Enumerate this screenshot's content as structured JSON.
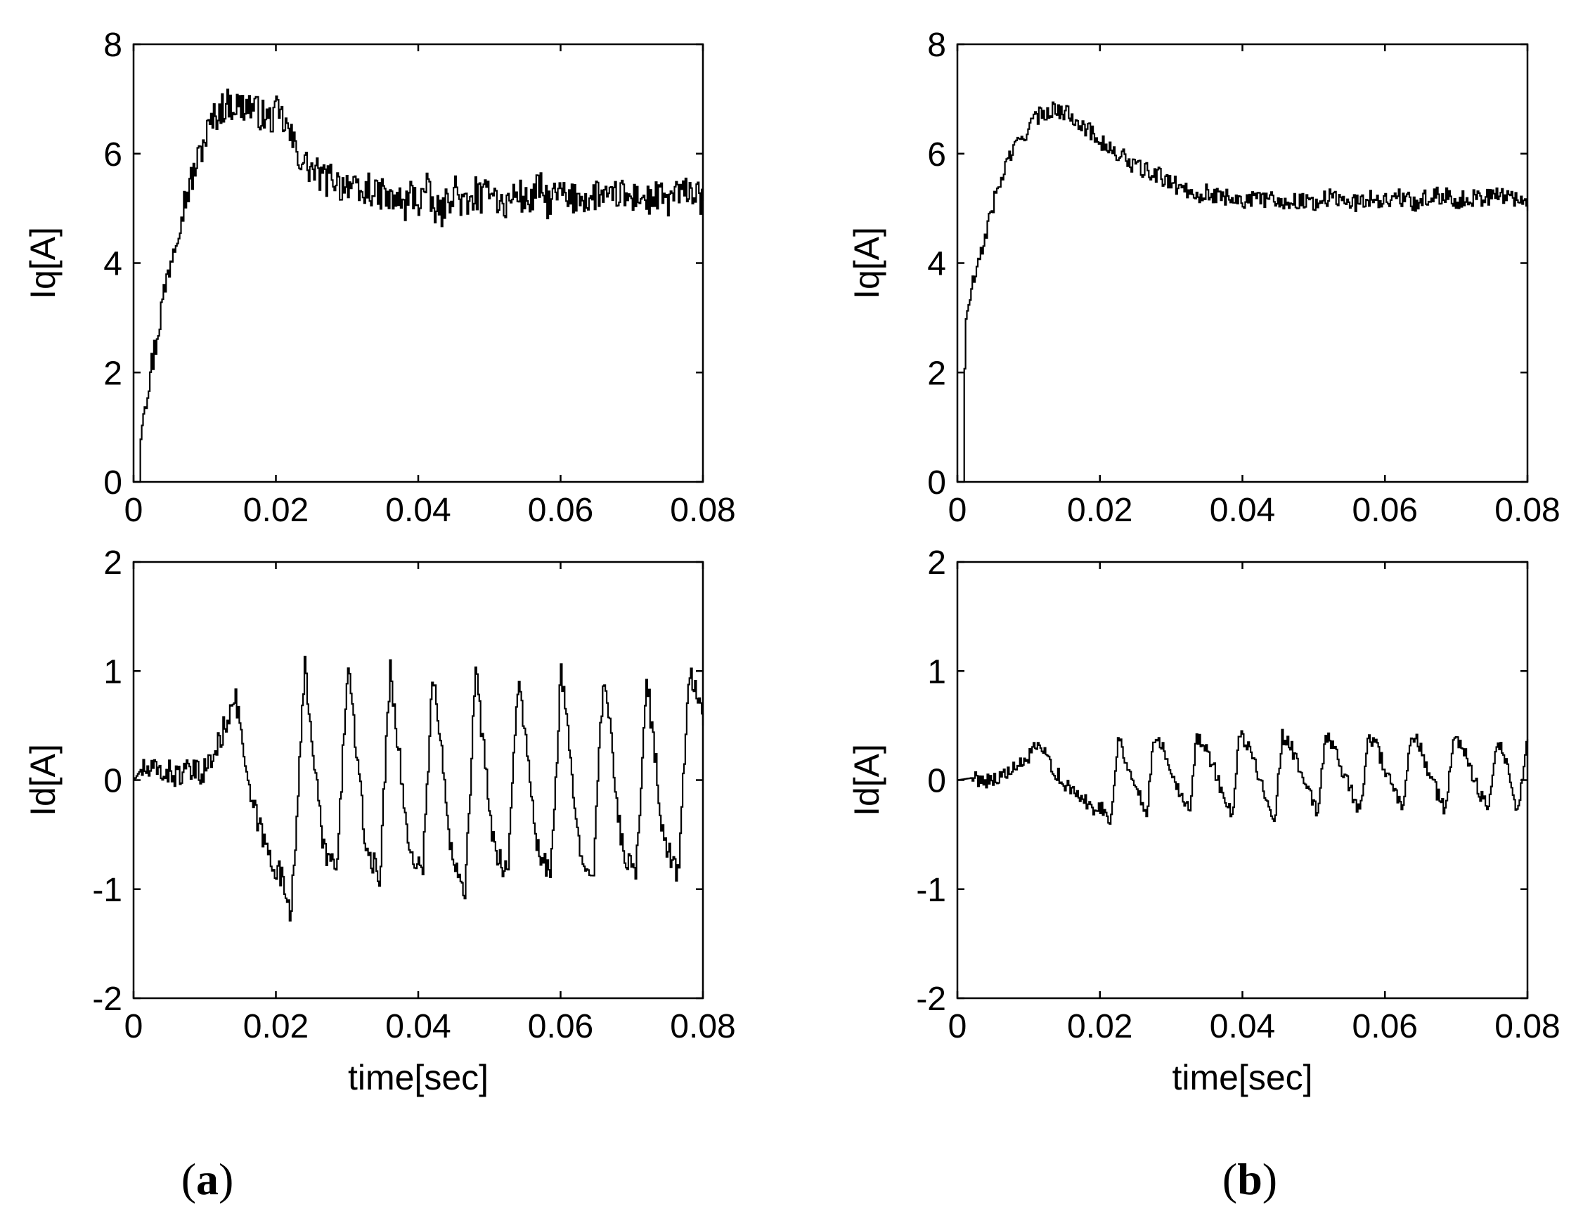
{
  "chart_data": [
    {
      "id": "a-top",
      "type": "line",
      "panel": "(a)",
      "title": "",
      "xlabel": "",
      "ylabel": "Iq[A]",
      "xlim": [
        0,
        0.08
      ],
      "ylim": [
        0,
        8
      ],
      "xticks": [
        0,
        0.02,
        0.04,
        0.06,
        0.08
      ],
      "xtick_labels": [
        "0",
        "0.02",
        "0.04",
        "0.06",
        "0.08"
      ],
      "yticks": [
        0,
        2,
        4,
        6,
        8
      ],
      "ytick_labels": [
        "0",
        "2",
        "4",
        "6",
        "8"
      ],
      "grid": false,
      "series": [
        {
          "name": "Iq",
          "x": [
            0,
            0.0008,
            0.001,
            0.002,
            0.003,
            0.004,
            0.005,
            0.006,
            0.007,
            0.008,
            0.009,
            0.01,
            0.011,
            0.012,
            0.013,
            0.014,
            0.015,
            0.016,
            0.017,
            0.018,
            0.019,
            0.02,
            0.021,
            0.022,
            0.023,
            0.024,
            0.025,
            0.026,
            0.027,
            0.028,
            0.029,
            0.03,
            0.031,
            0.032,
            0.033,
            0.034,
            0.035,
            0.036,
            0.037,
            0.038,
            0.039,
            0.04,
            0.041,
            0.042,
            0.043,
            0.044,
            0.045,
            0.046,
            0.047,
            0.048,
            0.049,
            0.05,
            0.051,
            0.052,
            0.053,
            0.054,
            0.055,
            0.056,
            0.057,
            0.058,
            0.059,
            0.06,
            0.061,
            0.062,
            0.063,
            0.064,
            0.065,
            0.066,
            0.067,
            0.068,
            0.069,
            0.07,
            0.071,
            0.072,
            0.073,
            0.074,
            0.075,
            0.076,
            0.077,
            0.078,
            0.079,
            0.08
          ],
          "y": [
            0,
            0,
            1.2,
            1.8,
            2.5,
            3.3,
            4.0,
            4.6,
            5.1,
            5.5,
            5.9,
            6.3,
            6.6,
            6.8,
            6.9,
            6.9,
            6.85,
            6.9,
            6.8,
            6.7,
            6.6,
            6.75,
            6.6,
            6.3,
            6.0,
            5.8,
            5.7,
            5.6,
            5.5,
            5.6,
            5.4,
            5.5,
            5.3,
            5.2,
            5.4,
            5.2,
            5.3,
            5.1,
            5.2,
            5.0,
            5.3,
            5.1,
            5.4,
            5.0,
            4.9,
            5.1,
            5.4,
            5.1,
            5.0,
            5.3,
            5.1,
            5.5,
            5.2,
            5.0,
            5.2,
            5.3,
            5.1,
            5.2,
            5.4,
            5.1,
            5.2,
            5.3,
            5.1,
            5.2,
            5.25,
            5.1,
            5.3,
            5.2,
            5.1,
            5.3,
            5.2,
            5.15,
            5.3,
            5.1,
            5.2,
            5.2,
            5.1,
            5.3,
            5.2,
            5.4,
            5.2,
            5.1
          ],
          "noise": 0.3
        }
      ]
    },
    {
      "id": "a-bottom",
      "type": "line",
      "panel": "(a)",
      "title": "",
      "xlabel": "time[sec]",
      "ylabel": "Id[A]",
      "xlim": [
        0,
        0.08
      ],
      "ylim": [
        -2,
        2
      ],
      "xticks": [
        0,
        0.02,
        0.04,
        0.06,
        0.08
      ],
      "xtick_labels": [
        "0",
        "0.02",
        "0.04",
        "0.06",
        "0.08"
      ],
      "yticks": [
        -2,
        -1,
        0,
        1,
        2
      ],
      "ytick_labels": [
        "-2",
        "-1",
        "0",
        "1",
        "2"
      ],
      "grid": false,
      "series": [
        {
          "name": "Id",
          "x": [
            0,
            0.001,
            0.002,
            0.004,
            0.006,
            0.008,
            0.009,
            0.01,
            0.011,
            0.012,
            0.013,
            0.014,
            0.015,
            0.016,
            0.017,
            0.018,
            0.019,
            0.02,
            0.021,
            0.022,
            0.023,
            0.024,
            0.0265,
            0.0285,
            0.03,
            0.0325,
            0.0345,
            0.036,
            0.0385,
            0.0405,
            0.042,
            0.0445,
            0.0465,
            0.048,
            0.0505,
            0.0525,
            0.054,
            0.0565,
            0.0585,
            0.06,
            0.0625,
            0.0645,
            0.066,
            0.0685,
            0.0705,
            0.072,
            0.0745,
            0.0765,
            0.078,
            0.08
          ],
          "y": [
            0,
            0.1,
            0.08,
            0.08,
            0.05,
            0.07,
            0.06,
            0.1,
            0.2,
            0.35,
            0.55,
            0.8,
            0.5,
            -0.1,
            -0.3,
            -0.5,
            -0.7,
            -0.8,
            -0.95,
            -1.2,
            -0.2,
            1.05,
            -0.6,
            -0.85,
            1.1,
            -0.6,
            -0.9,
            1.05,
            -0.6,
            -0.85,
            1.0,
            -0.6,
            -1.0,
            1.0,
            -0.6,
            -0.85,
            1.0,
            -0.6,
            -0.9,
            1.0,
            -0.6,
            -0.85,
            1.0,
            -0.6,
            -0.9,
            0.95,
            -0.6,
            -0.85,
            1.0,
            0.6
          ],
          "noise": 0.12
        }
      ]
    },
    {
      "id": "b-top",
      "type": "line",
      "panel": "(b)",
      "title": "",
      "xlabel": "",
      "ylabel": "Iq[A]",
      "xlim": [
        0,
        0.08
      ],
      "ylim": [
        0,
        8
      ],
      "xticks": [
        0,
        0.02,
        0.04,
        0.06,
        0.08
      ],
      "xtick_labels": [
        "0",
        "0.02",
        "0.04",
        "0.06",
        "0.08"
      ],
      "yticks": [
        0,
        2,
        4,
        6,
        8
      ],
      "ytick_labels": [
        "0",
        "2",
        "4",
        "6",
        "8"
      ],
      "grid": false,
      "series": [
        {
          "name": "Iq",
          "x": [
            0,
            0.0008,
            0.001,
            0.002,
            0.003,
            0.004,
            0.005,
            0.006,
            0.007,
            0.008,
            0.009,
            0.01,
            0.011,
            0.012,
            0.013,
            0.014,
            0.015,
            0.016,
            0.017,
            0.018,
            0.019,
            0.02,
            0.021,
            0.022,
            0.023,
            0.024,
            0.025,
            0.026,
            0.027,
            0.028,
            0.029,
            0.03,
            0.031,
            0.032,
            0.033,
            0.034,
            0.035,
            0.036,
            0.037,
            0.038,
            0.039,
            0.04,
            0.042,
            0.044,
            0.046,
            0.048,
            0.05,
            0.052,
            0.054,
            0.056,
            0.058,
            0.06,
            0.062,
            0.064,
            0.066,
            0.068,
            0.07,
            0.072,
            0.074,
            0.076,
            0.078,
            0.08
          ],
          "y": [
            0,
            0,
            2.8,
            3.6,
            4.0,
            4.6,
            5.1,
            5.5,
            5.9,
            6.1,
            6.3,
            6.5,
            6.65,
            6.75,
            6.8,
            6.8,
            6.75,
            6.7,
            6.6,
            6.45,
            6.35,
            6.25,
            6.1,
            6.0,
            5.95,
            5.85,
            5.75,
            5.7,
            5.65,
            5.6,
            5.55,
            5.45,
            5.4,
            5.35,
            5.3,
            5.25,
            5.3,
            5.2,
            5.25,
            5.2,
            5.2,
            5.15,
            5.15,
            5.2,
            5.1,
            5.15,
            5.1,
            5.2,
            5.15,
            5.1,
            5.2,
            5.15,
            5.2,
            5.1,
            5.2,
            5.25,
            5.15,
            5.2,
            5.2,
            5.25,
            5.2,
            5.1
          ],
          "noise": 0.16
        }
      ]
    },
    {
      "id": "b-bottom",
      "type": "line",
      "panel": "(b)",
      "title": "",
      "xlabel": "time[sec]",
      "ylabel": "Id[A]",
      "xlim": [
        0,
        0.08
      ],
      "ylim": [
        -2,
        2
      ],
      "xticks": [
        0,
        0.02,
        0.04,
        0.06,
        0.08
      ],
      "xtick_labels": [
        "0",
        "0.02",
        "0.04",
        "0.06",
        "0.08"
      ],
      "yticks": [
        -2,
        -1,
        0,
        1,
        2
      ],
      "ytick_labels": [
        "-2",
        "-1",
        "0",
        "1",
        "2"
      ],
      "grid": false,
      "series": [
        {
          "name": "Id",
          "x": [
            0,
            0.002,
            0.004,
            0.006,
            0.008,
            0.009,
            0.01,
            0.011,
            0.012,
            0.013,
            0.014,
            0.015,
            0.016,
            0.017,
            0.018,
            0.019,
            0.02,
            0.0215,
            0.0225,
            0.0245,
            0.0265,
            0.0275,
            0.0285,
            0.0305,
            0.0325,
            0.0335,
            0.0345,
            0.0365,
            0.0385,
            0.0395,
            0.0405,
            0.0425,
            0.0445,
            0.0455,
            0.0465,
            0.0485,
            0.0505,
            0.0515,
            0.0525,
            0.0545,
            0.0565,
            0.0575,
            0.0585,
            0.0605,
            0.0625,
            0.0635,
            0.0645,
            0.0665,
            0.0685,
            0.0695,
            0.0705,
            0.0725,
            0.0745,
            0.0755,
            0.0765,
            0.0785,
            0.08
          ],
          "y": [
            0,
            0.02,
            0.0,
            0.03,
            0.1,
            0.15,
            0.22,
            0.3,
            0.25,
            0.15,
            0.05,
            -0.05,
            -0.1,
            -0.15,
            -0.2,
            -0.25,
            -0.25,
            -0.35,
            0.4,
            0.0,
            -0.3,
            0.4,
            0.35,
            0.0,
            -0.3,
            0.4,
            0.35,
            0.0,
            -0.35,
            0.4,
            0.35,
            0.0,
            -0.35,
            0.4,
            0.35,
            0.0,
            -0.3,
            0.4,
            0.35,
            0.0,
            -0.3,
            0.4,
            0.35,
            0.0,
            -0.3,
            0.4,
            0.35,
            0.0,
            -0.3,
            0.4,
            0.35,
            0.0,
            -0.3,
            0.35,
            0.3,
            -0.3,
            0.4
          ],
          "noise": 0.07
        }
      ]
    }
  ],
  "panels": {
    "a": {
      "open": "(",
      "letter": "a",
      "close": ")"
    },
    "b": {
      "open": "(",
      "letter": "b",
      "close": ")"
    }
  }
}
